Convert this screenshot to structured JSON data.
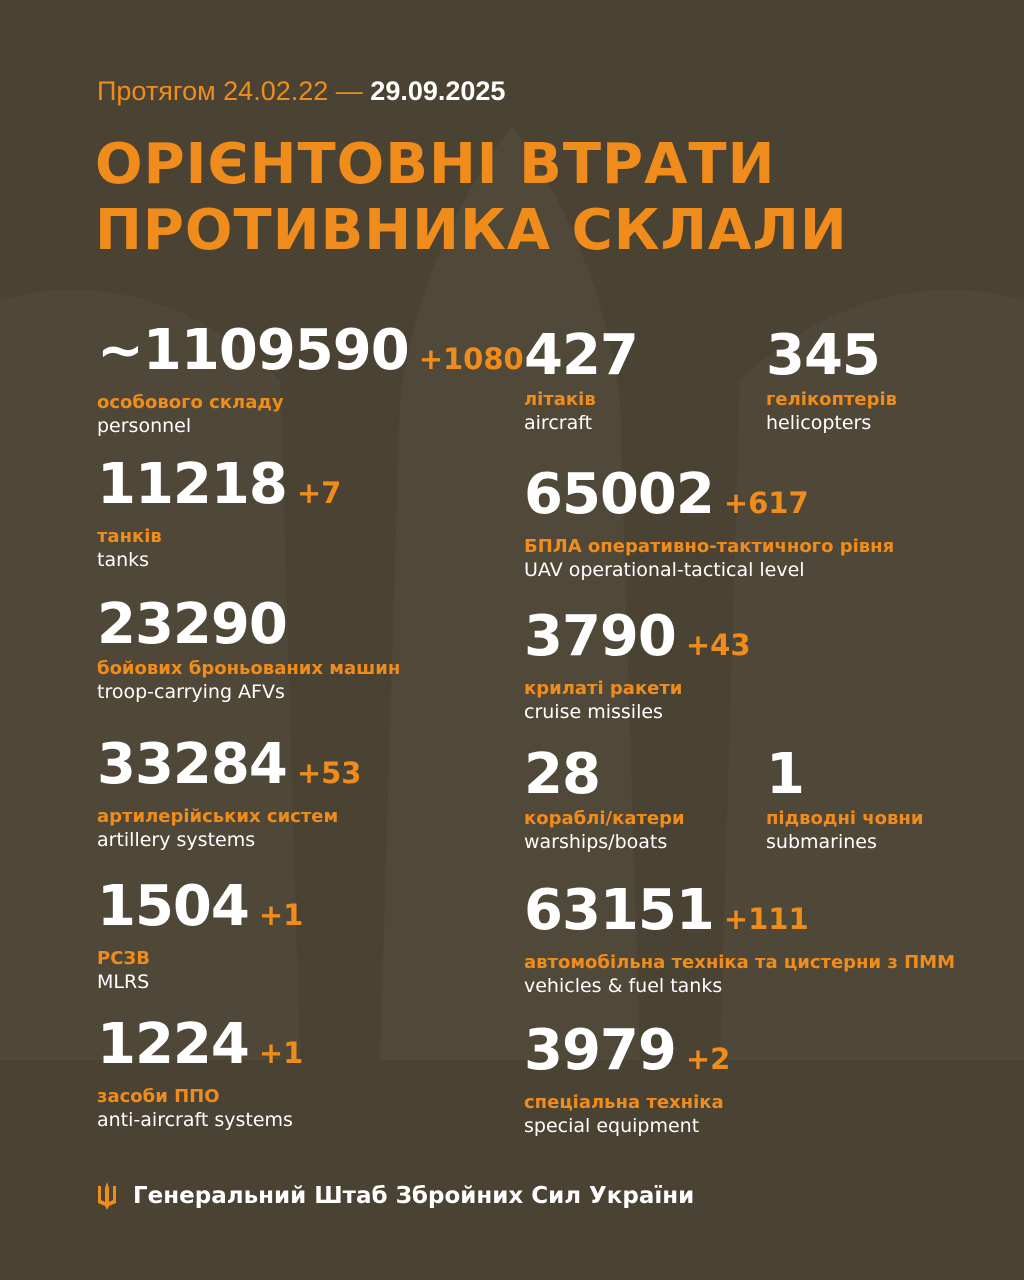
{
  "header": {
    "period_prefix": "Протягом 24.02.22 —",
    "period_end": "29.09.2025",
    "title_line1": "ОРІЄНТОВНІ ВТРАТИ",
    "title_line2": "ПРОТИВНИКА СКЛАЛИ"
  },
  "colors": {
    "background": "#4a4334",
    "accent": "#f08c1c",
    "text": "#ffffff"
  },
  "stats": [
    {
      "value": "~1109590",
      "delta": "+1080",
      "ua": "особового складу",
      "en": "personnel"
    },
    {
      "value": "11218",
      "delta": "+7",
      "ua": "танків",
      "en": "tanks"
    },
    {
      "value": "23290",
      "delta": "",
      "ua": "бойових броньованих машин",
      "en": "troop-carrying AFVs"
    },
    {
      "value": "33284",
      "delta": "+53",
      "ua": "артилерійських систем",
      "en": "artillery systems"
    },
    {
      "value": "1504",
      "delta": "+1",
      "ua": "РСЗВ",
      "en": "MLRS"
    },
    {
      "value": "1224",
      "delta": "+1",
      "ua": "засоби ППО",
      "en": "anti-aircraft systems"
    },
    {
      "value": "427",
      "delta": "",
      "ua": "літаків",
      "en": "aircraft"
    },
    {
      "value": "345",
      "delta": "",
      "ua": "гелікоптерів",
      "en": "helicopters"
    },
    {
      "value": "65002",
      "delta": "+617",
      "ua": "БПЛА оперативно-тактичного рівня",
      "en": "UAV operational-tactical level"
    },
    {
      "value": "3790",
      "delta": "+43",
      "ua": "крилаті ракети",
      "en": "cruise missiles"
    },
    {
      "value": "28",
      "delta": "",
      "ua": "кораблі/катери",
      "en": "warships/boats"
    },
    {
      "value": "1",
      "delta": "",
      "ua": "підводні човни",
      "en": "submarines"
    },
    {
      "value": "63151",
      "delta": "+111",
      "ua": "автомобільна техніка та цистерни з ПММ",
      "en": "vehicles & fuel tanks"
    },
    {
      "value": "3979",
      "delta": "+2",
      "ua": "спеціальна техніка",
      "en": "special equipment"
    }
  ],
  "footer": {
    "icon": "trident-icon",
    "text": "Генеральний Штаб Збройних Сил України"
  }
}
